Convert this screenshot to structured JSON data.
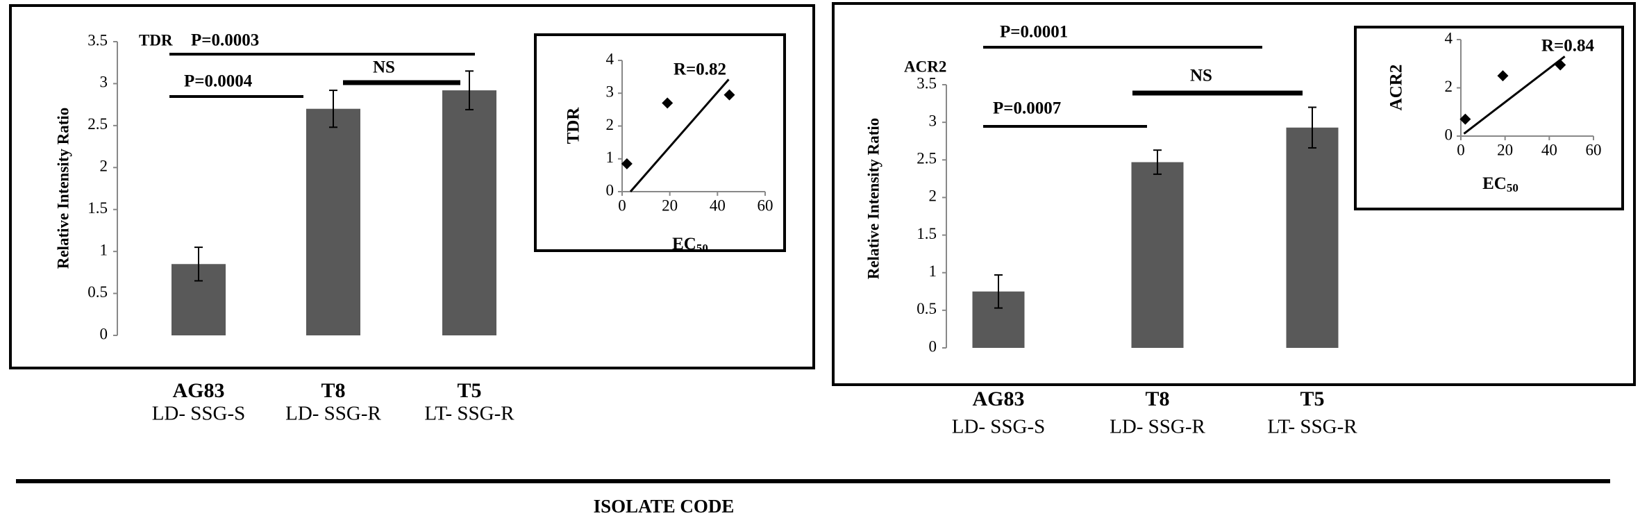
{
  "chart_data": [
    {
      "type": "bar",
      "title": "TDR",
      "y_label": "Relative Intensity Ratio",
      "categories": [
        "AG83",
        "T8",
        "T5"
      ],
      "category_sublabels": [
        "LD- SSG-S",
        "LD- SSG-R",
        "LT- SSG-R"
      ],
      "values": [
        0.85,
        2.7,
        2.92
      ],
      "errors": [
        0.2,
        0.22,
        0.23
      ],
      "color": "#595959",
      "ylim": [
        0,
        3.5
      ],
      "yticks": [
        0,
        0.5,
        1,
        1.5,
        2,
        2.5,
        3,
        3.5
      ],
      "annotations": [
        "P=0.0003",
        "P=0.0004",
        "NS"
      ]
    },
    {
      "type": "scatter",
      "y_label": "TDR",
      "x_label": "EC",
      "x_label_subscript": "50",
      "annotation": "R=0.82",
      "x": [
        2,
        19,
        45
      ],
      "values": [
        0.85,
        2.7,
        2.95
      ],
      "color": "#000000",
      "trendline": {
        "x": [
          3.5,
          44.7
        ],
        "y": [
          0,
          3.42
        ]
      },
      "xlim": [
        0,
        60
      ],
      "xticks": [
        0,
        20,
        40,
        60
      ],
      "ylim": [
        0,
        4
      ],
      "yticks": [
        0,
        1,
        2,
        3,
        4
      ]
    },
    {
      "type": "bar",
      "title": "ACR2",
      "y_label": "Relative Intensity Ratio",
      "categories": [
        "AG83",
        "T8",
        "T5"
      ],
      "category_sublabels": [
        "LD- SSG-S",
        "LD- SSG-R",
        "LT- SSG-R"
      ],
      "values": [
        0.75,
        2.47,
        2.93
      ],
      "errors": [
        0.22,
        0.16,
        0.27
      ],
      "color": "#595959",
      "ylim": [
        0,
        3.5
      ],
      "yticks": [
        0,
        0.5,
        1,
        1.5,
        2,
        2.5,
        3,
        3.5
      ],
      "annotations": [
        "P=0.0001",
        "P=0.0007",
        "NS"
      ]
    },
    {
      "type": "scatter",
      "y_label": "ACR2",
      "x_label": "EC",
      "x_label_subscript": "50",
      "annotation": "R=0.84",
      "x": [
        2,
        19,
        45
      ],
      "values": [
        0.7,
        2.5,
        2.95
      ],
      "color": "#000000",
      "trendline": {
        "x": [
          1.4,
          47
        ],
        "y": [
          0.1,
          3.3
        ]
      },
      "xlim": [
        0,
        60
      ],
      "xticks": [
        0,
        20,
        40,
        60
      ],
      "ylim": [
        0,
        4
      ],
      "yticks": [
        0,
        2,
        4
      ]
    }
  ],
  "footer": {
    "label": "ISOLATE CODE"
  }
}
